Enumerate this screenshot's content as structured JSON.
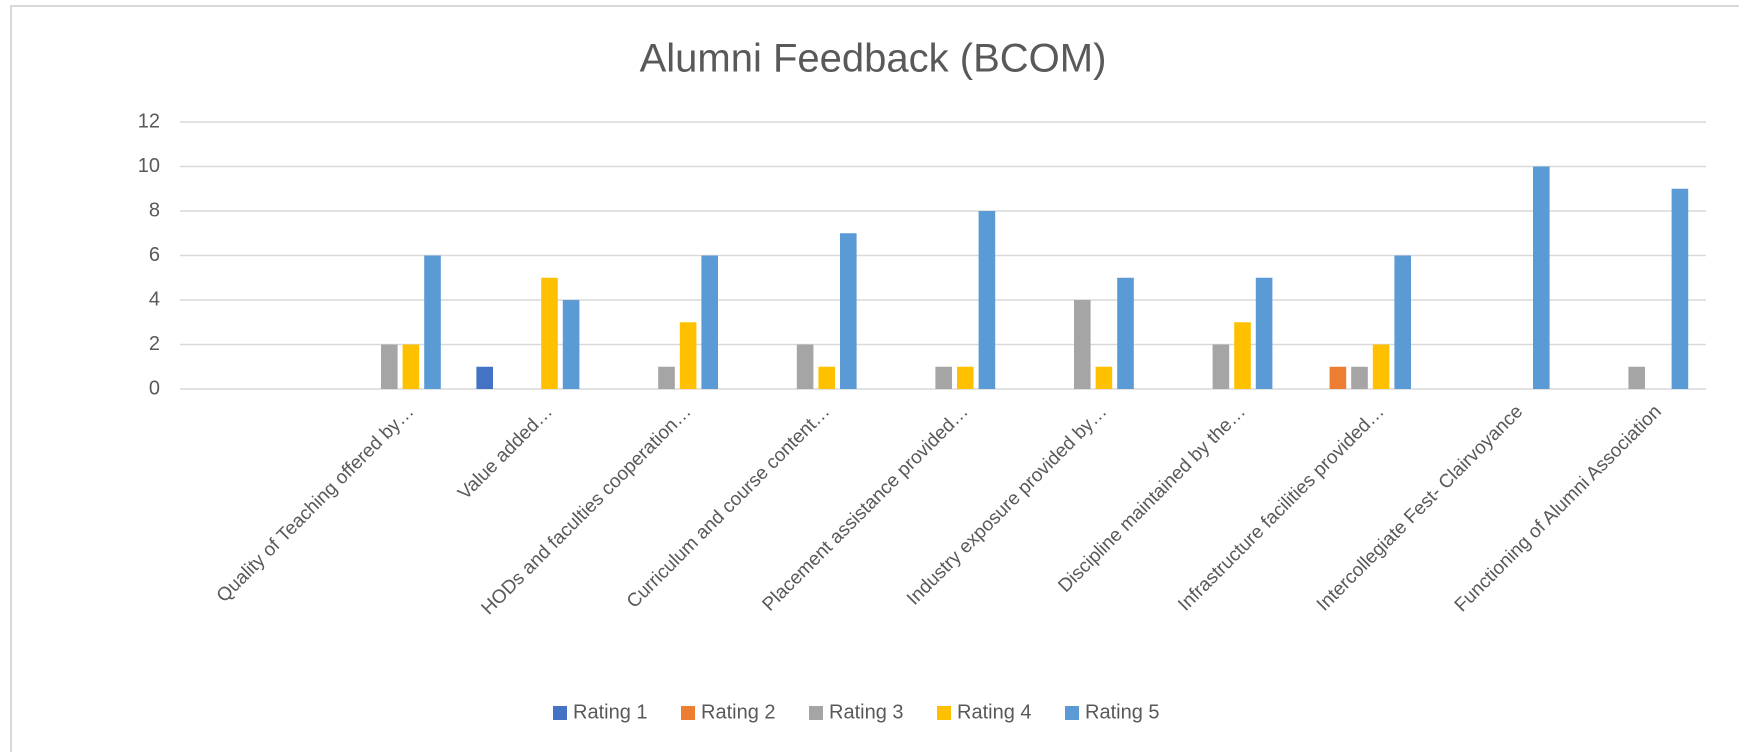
{
  "chart_data": {
    "type": "bar",
    "title": "Alumni Feedback  (BCOM)",
    "categories": [
      "Quality of Teaching offered by…",
      "Value added…",
      "HODs and faculties cooperation…",
      "Curriculum and course content…",
      "Placement assistance provided…",
      "Industry exposure provided by…",
      "Discipline maintained by the…",
      "Infrastructure facilities provided…",
      "Intercollegiate Fest- Clairvoyance",
      "Functioning of Alumni Association"
    ],
    "series": [
      {
        "name": "Rating 1",
        "color": "#4472c4",
        "values": [
          null,
          1,
          null,
          null,
          null,
          null,
          null,
          null,
          null,
          null
        ]
      },
      {
        "name": "Rating 2",
        "color": "#ed7d31",
        "values": [
          null,
          null,
          null,
          null,
          null,
          null,
          null,
          1,
          null,
          null
        ]
      },
      {
        "name": "Rating 3",
        "color": "#a5a5a5",
        "values": [
          2,
          null,
          1,
          2,
          1,
          4,
          2,
          1,
          null,
          1
        ]
      },
      {
        "name": "Rating 4",
        "color": "#ffc000",
        "values": [
          2,
          5,
          3,
          1,
          1,
          1,
          3,
          2,
          null,
          null
        ]
      },
      {
        "name": "Rating 5",
        "color": "#5b9bd5",
        "values": [
          6,
          4,
          6,
          7,
          8,
          5,
          5,
          6,
          10,
          9
        ]
      }
    ],
    "ylim": [
      0,
      12
    ],
    "yticks": [
      0,
      2,
      4,
      6,
      8,
      10,
      12
    ],
    "grid": true,
    "legend": "bottom"
  }
}
